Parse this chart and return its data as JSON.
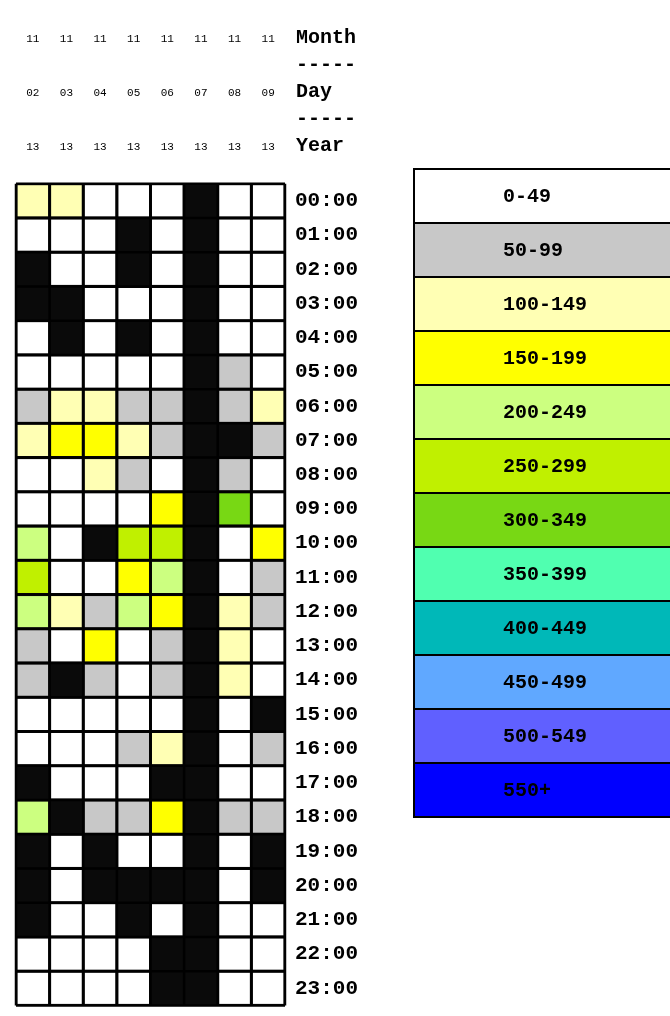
{
  "chart_data": {
    "type": "heatmap",
    "xlabel": "Month ----- Day ----- Year",
    "categories": [
      "11 02 13",
      "11 03 13",
      "11 04 13",
      "11 05 13",
      "11 06 13",
      "11 07 13",
      "11 08 13",
      "11 09 13"
    ],
    "y_categories": [
      "00:00",
      "01:00",
      "02:00",
      "03:00",
      "04:00",
      "05:00",
      "06:00",
      "07:00",
      "08:00",
      "09:00",
      "10:00",
      "11:00",
      "12:00",
      "13:00",
      "14:00",
      "15:00",
      "16:00",
      "17:00",
      "18:00",
      "19:00",
      "20:00",
      "21:00",
      "22:00",
      "23:00"
    ],
    "cells": [
      [
        125,
        125,
        25,
        25,
        25,
        null,
        25,
        25
      ],
      [
        25,
        25,
        25,
        null,
        25,
        null,
        25,
        25
      ],
      [
        null,
        25,
        25,
        null,
        25,
        null,
        25,
        25
      ],
      [
        null,
        null,
        25,
        25,
        25,
        null,
        25,
        25
      ],
      [
        25,
        null,
        25,
        null,
        25,
        null,
        25,
        25
      ],
      [
        25,
        25,
        25,
        25,
        25,
        null,
        75,
        25
      ],
      [
        75,
        125,
        125,
        75,
        75,
        null,
        75,
        125
      ],
      [
        125,
        175,
        175,
        125,
        75,
        null,
        null,
        75
      ],
      [
        25,
        25,
        125,
        75,
        25,
        null,
        75,
        25
      ],
      [
        25,
        25,
        25,
        25,
        175,
        null,
        325,
        25
      ],
      [
        225,
        25,
        null,
        275,
        275,
        null,
        25,
        175
      ],
      [
        275,
        25,
        25,
        175,
        225,
        null,
        25,
        75
      ],
      [
        225,
        125,
        75,
        225,
        175,
        null,
        125,
        75
      ],
      [
        75,
        25,
        175,
        25,
        75,
        null,
        125,
        25
      ],
      [
        75,
        null,
        75,
        25,
        75,
        null,
        125,
        25
      ],
      [
        25,
        25,
        25,
        25,
        25,
        null,
        25,
        null
      ],
      [
        25,
        25,
        25,
        75,
        125,
        null,
        25,
        75
      ],
      [
        null,
        25,
        25,
        25,
        null,
        null,
        25,
        25
      ],
      [
        225,
        null,
        75,
        75,
        175,
        null,
        75,
        75
      ],
      [
        null,
        25,
        null,
        25,
        25,
        null,
        25,
        null
      ],
      [
        null,
        25,
        null,
        null,
        null,
        null,
        25,
        null
      ],
      [
        null,
        25,
        25,
        null,
        25,
        null,
        25,
        25
      ],
      [
        25,
        25,
        25,
        25,
        null,
        null,
        25,
        25
      ],
      [
        25,
        25,
        25,
        25,
        null,
        null,
        25,
        25
      ]
    ],
    "clim": [
      0,
      600
    ],
    "cticks": [
      {
        "value": 0,
        "label": "0-49"
      },
      {
        "value": 50,
        "label": "50-99"
      },
      {
        "value": 100,
        "label": "100-149"
      },
      {
        "value": 150,
        "label": "150-199"
      },
      {
        "value": 200,
        "label": "200-249"
      },
      {
        "value": 250,
        "label": "250-299"
      },
      {
        "value": 300,
        "label": "300-349"
      },
      {
        "value": 350,
        "label": "350-399"
      },
      {
        "value": 400,
        "label": "400-449"
      },
      {
        "value": 450,
        "label": "450-499"
      },
      {
        "value": 500,
        "label": "500-549"
      },
      {
        "value": 550,
        "label": "550+"
      }
    ],
    "colors": [
      "#ffffff",
      "#c8c8c8",
      "#ffffb4",
      "#ffff00",
      "#ccff80",
      "#c0f000",
      "#78d814",
      "#50ffb0",
      "#00b8b8",
      "#60a8ff",
      "#6060ff",
      "#0000ff"
    ],
    "color": "#0a0a0a"
  }
}
